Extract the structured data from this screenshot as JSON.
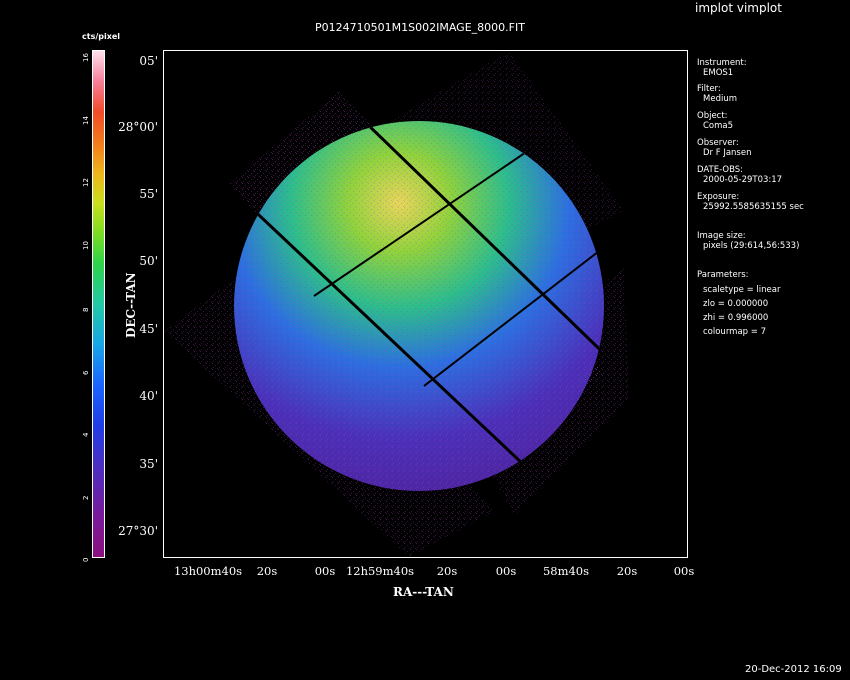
{
  "window": {
    "title": "implot vimplot"
  },
  "image": {
    "title": "P0124710501M1S002IMAGE_8000.FIT",
    "x_axis_label": "RA---TAN",
    "y_axis_label": "DEC--TAN",
    "y_ticks": [
      "05'",
      "28°00'",
      "55'",
      "50'",
      "45'",
      "40'",
      "35'",
      "27°30'"
    ],
    "x_ticks": [
      "13h00m40s",
      "20s",
      "00s",
      "12h59m40s",
      "20s",
      "00s",
      "58m40s",
      "20s",
      "00s"
    ]
  },
  "colorbar": {
    "label": "cts/pixel",
    "ticks": [
      "0",
      "2",
      "4",
      "6",
      "8",
      "10",
      "12",
      "14",
      "16"
    ]
  },
  "info": {
    "instrument_label": "Instrument:",
    "instrument": "EMOS1",
    "filter_label": "Filter:",
    "filter": "Medium",
    "object_label": "Object:",
    "object": "Coma5",
    "observer_label": "Observer:",
    "observer": "Dr F Jansen",
    "date_label": "DATE-OBS:",
    "date": "2000-05-29T03:17",
    "exposure_label": "Exposure:",
    "exposure": "25992.5585635155 sec",
    "size_label": "Image size:",
    "size": "pixels (29:614,56:533)",
    "params_label": "Parameters:",
    "scaletype": "scaletype = linear",
    "zlo": "zlo = 0.000000",
    "zhi": "zhi = 0.996000",
    "colourmap": "colourmap =   7"
  },
  "footer": {
    "timestamp": "20-Dec-2012 16:09"
  }
}
